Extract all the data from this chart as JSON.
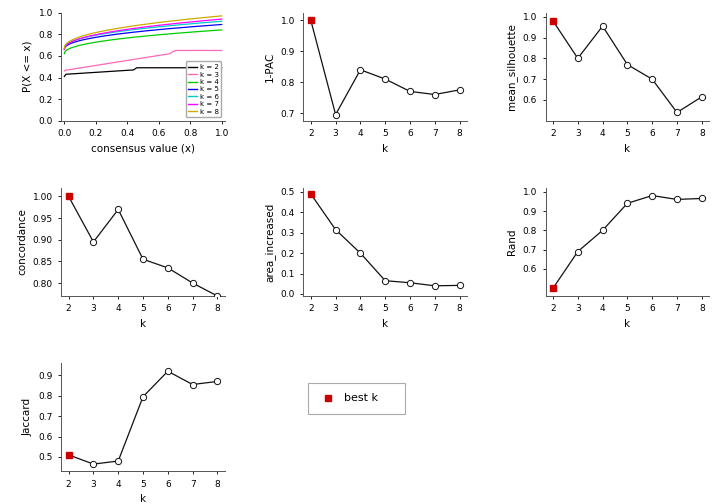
{
  "pac": {
    "k": [
      2,
      3,
      4,
      5,
      6,
      7,
      8
    ],
    "y": [
      1.0,
      0.695,
      0.84,
      0.81,
      0.77,
      0.76,
      0.775
    ],
    "best_k_idx": 0,
    "ylabel": "1-PAC",
    "yticks": [
      0.7,
      0.8,
      0.9,
      1.0
    ],
    "ylim": [
      0.675,
      1.025
    ]
  },
  "mean_silhouette": {
    "k": [
      2,
      3,
      4,
      5,
      6,
      7,
      8
    ],
    "y": [
      0.98,
      0.8,
      0.955,
      0.77,
      0.7,
      0.54,
      0.615
    ],
    "best_k_idx": 0,
    "ylabel": "mean_silhouette",
    "yticks": [
      0.6,
      0.7,
      0.8,
      0.9,
      1.0
    ],
    "ylim": [
      0.5,
      1.02
    ]
  },
  "concordance": {
    "k": [
      2,
      3,
      4,
      5,
      6,
      7,
      8
    ],
    "y": [
      1.0,
      0.895,
      0.97,
      0.855,
      0.835,
      0.8,
      0.77
    ],
    "best_k_idx": 0,
    "ylabel": "concordance",
    "yticks": [
      0.8,
      0.85,
      0.9,
      0.95,
      1.0
    ],
    "ylim": [
      0.77,
      1.02
    ]
  },
  "area_increased": {
    "k": [
      2,
      3,
      4,
      5,
      6,
      7,
      8
    ],
    "y": [
      0.49,
      0.315,
      0.2,
      0.065,
      0.055,
      0.04,
      0.042
    ],
    "best_k_idx": 0,
    "ylabel": "area_increased",
    "yticks": [
      0.0,
      0.1,
      0.2,
      0.3,
      0.4,
      0.5
    ],
    "ylim": [
      -0.01,
      0.52
    ]
  },
  "rand": {
    "k": [
      2,
      3,
      4,
      5,
      6,
      7,
      8
    ],
    "y": [
      0.5,
      0.69,
      0.8,
      0.94,
      0.98,
      0.96,
      0.965
    ],
    "best_k_idx": 0,
    "ylabel": "Rand",
    "yticks": [
      0.6,
      0.7,
      0.8,
      0.9,
      1.0
    ],
    "ylim": [
      0.46,
      1.02
    ]
  },
  "jaccard": {
    "k": [
      2,
      3,
      4,
      5,
      6,
      7,
      8
    ],
    "y": [
      0.51,
      0.465,
      0.48,
      0.795,
      0.92,
      0.855,
      0.87
    ],
    "best_k_idx": 0,
    "ylabel": "Jaccard",
    "yticks": [
      0.5,
      0.6,
      0.7,
      0.8,
      0.9
    ],
    "ylim": [
      0.43,
      0.96
    ]
  },
  "ecdf_colors": [
    "#000000",
    "#FF69B4",
    "#00CC00",
    "#0000FF",
    "#00CCCC",
    "#FF00FF",
    "#CCAA00"
  ],
  "ecdf_labels": [
    "k = 2",
    "k = 3",
    "k = 4",
    "k = 5",
    "k = 6",
    "k = 7",
    "k = 8"
  ],
  "best_k_color": "#CC0000",
  "open_marker_facecolor": "#FFFFFF",
  "line_color": "#111111",
  "bg_color": "#FFFFFF"
}
